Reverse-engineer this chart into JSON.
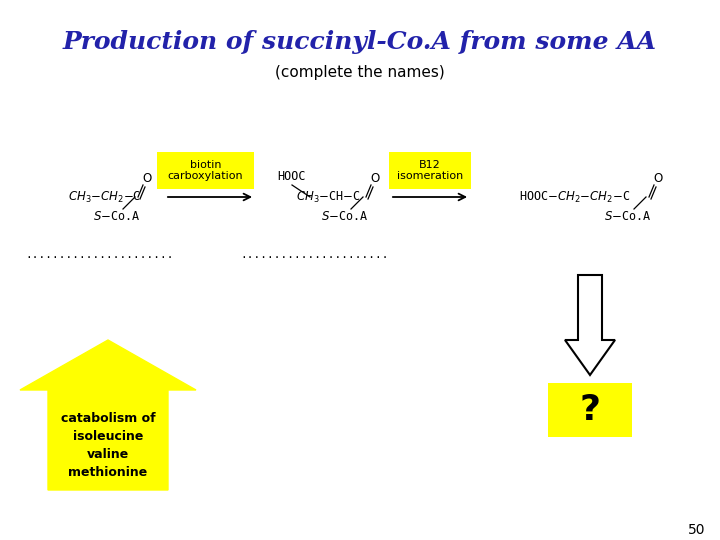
{
  "title": "Production of succinyl-Co.A from some AA",
  "subtitle": "(complete the names)",
  "title_color": "#2222aa",
  "title_fontsize": 18,
  "subtitle_fontsize": 11,
  "bg_color": "#ffffff",
  "page_number": "50",
  "biotin_label": "biotin\ncarboxylation",
  "b12_label": "B12\nisomeration",
  "question_mark": "?",
  "catabolism_text": "catabolism of\nisoleucine\nvaline\nmethionine",
  "dots1": "......................",
  "dots2": "......................"
}
